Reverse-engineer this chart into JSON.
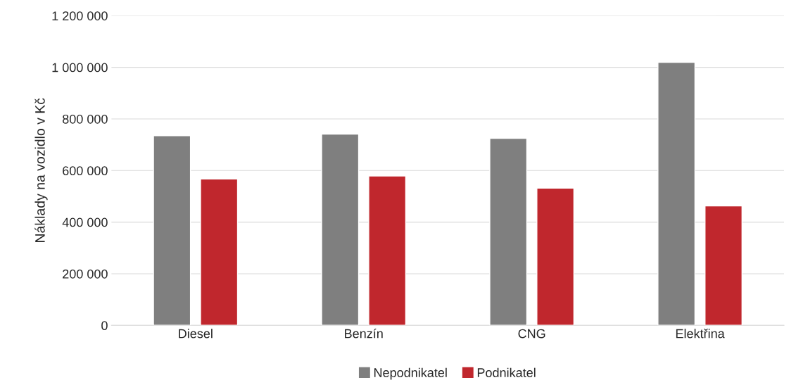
{
  "chart_data": {
    "type": "bar",
    "ylabel": "Náklady na vozidlo v Kč",
    "categories": [
      "Diesel",
      "Benzín",
      "CNG",
      "Elektřina"
    ],
    "series": [
      {
        "name": "Nepodnikatel",
        "color": "#7f7f7f",
        "values": [
          735000,
          741000,
          725000,
          1019000
        ]
      },
      {
        "name": "Podnikatel",
        "color": "#c0272d",
        "values": [
          567000,
          579000,
          532000,
          463000
        ]
      }
    ],
    "ylim": [
      0,
      1200000
    ],
    "yticks": [
      {
        "value": 0,
        "label": "0"
      },
      {
        "value": 200000,
        "label": "200 000"
      },
      {
        "value": 400000,
        "label": "400 000"
      },
      {
        "value": 600000,
        "label": "600 000"
      },
      {
        "value": 800000,
        "label": "800 000"
      },
      {
        "value": 1000000,
        "label": "1 000 000"
      },
      {
        "value": 1200000,
        "label": "1 200 000"
      }
    ],
    "grid": "y",
    "legend": "bottom"
  }
}
